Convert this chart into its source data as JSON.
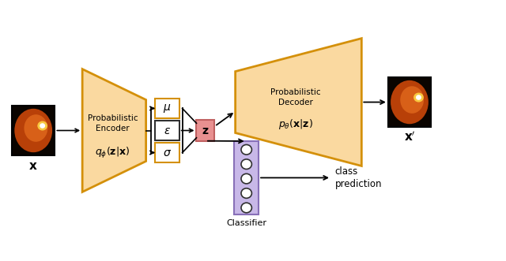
{
  "figsize": [
    6.4,
    3.31
  ],
  "dpi": 100,
  "bg_color": "#ffffff",
  "orange_fill": "#FAD9A0",
  "orange_edge": "#D4900A",
  "pink_fill": "#E89090",
  "pink_edge": "#C06060",
  "purple_fill": "#C8B8E8",
  "purple_edge": "#8870B8",
  "box_fill": "#ffffff",
  "box_edge_orange": "#D4900A",
  "box_edge_gray": "#303030",
  "encoder_label": "Probabilistic\nEncoder",
  "encoder_formula": "$q_\\phi(\\mathbf{z}|\\mathbf{x})$",
  "decoder_label": "Probabilistic\nDecoder",
  "decoder_formula": "$p_\\theta(\\mathbf{x}|\\mathbf{z})$",
  "mu_label": "$\\mu$",
  "eps_label": "$\\varepsilon$",
  "sigma_label": "$\\sigma$",
  "z_label": "$\\mathbf{z}$",
  "x_label": "$\\mathbf{x}$",
  "xprime_label": "$\\mathbf{x}'$",
  "classifier_label": "Classifier",
  "class_pred_label": "class\nprediction",
  "xlim": [
    0,
    10
  ],
  "ylim": [
    0,
    5.5
  ]
}
